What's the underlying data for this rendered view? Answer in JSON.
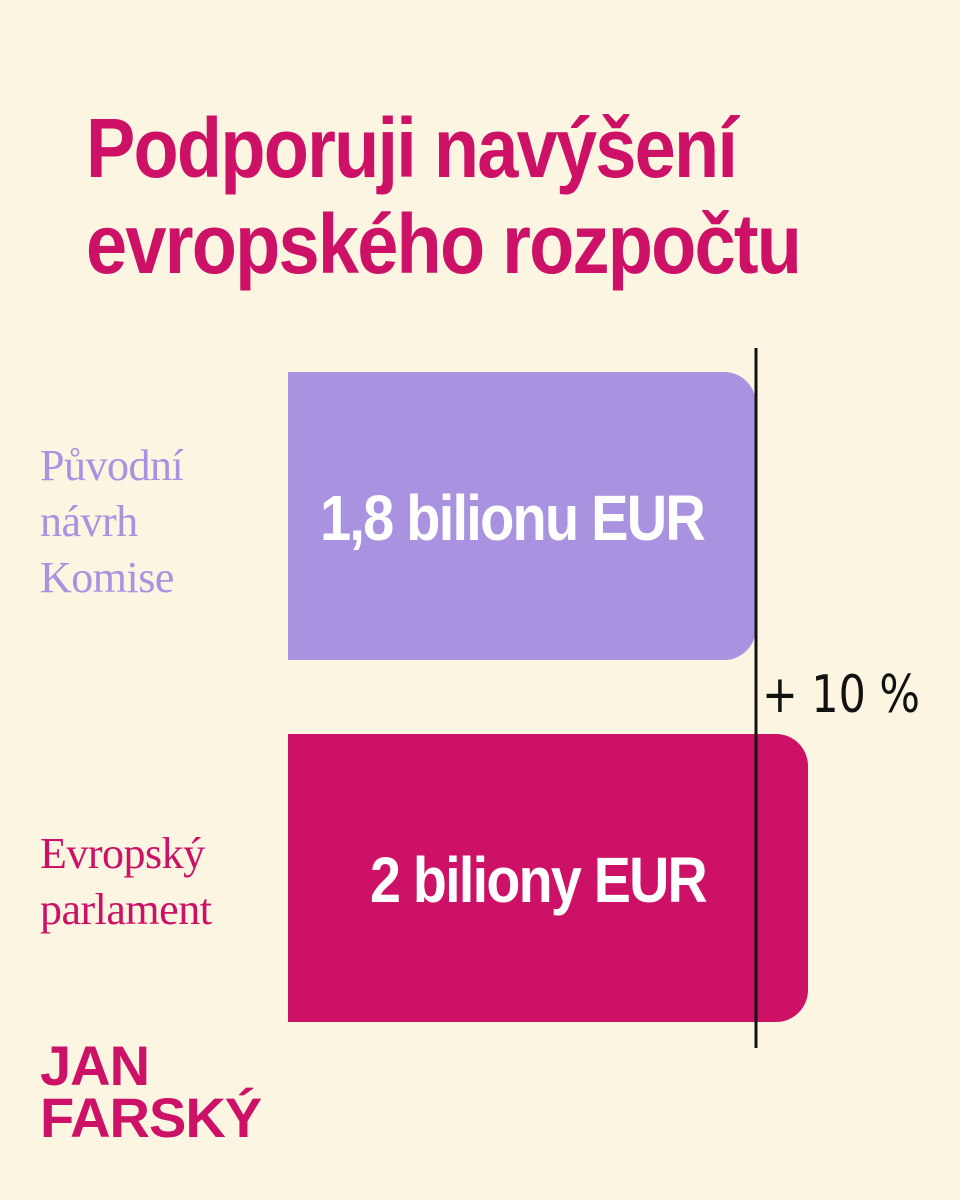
{
  "colors": {
    "background": "#fbf5e1",
    "accent": "#cc1166",
    "lavender": "#a993e0",
    "line": "#111111"
  },
  "header": {
    "title_line1": "Podporuji navýšení",
    "title_line2": "evropského rozpočtu"
  },
  "chart_data": {
    "type": "bar",
    "orientation": "horizontal",
    "categories_lines": [
      [
        "Původní",
        "návrh",
        "Komise"
      ],
      [
        "Evropský",
        "parlament"
      ]
    ],
    "values": [
      1.8,
      2.0
    ],
    "unit": "bilionu EUR",
    "data_labels": [
      "1,8 bilionu EUR",
      "2 biliony EUR"
    ],
    "bar_colors": [
      "#a993e0",
      "#cc1166"
    ],
    "annotation": "+ 10 %",
    "reference_value": 1.8
  },
  "logo": {
    "line1": "JAN",
    "line2": "FARSKÝ"
  }
}
